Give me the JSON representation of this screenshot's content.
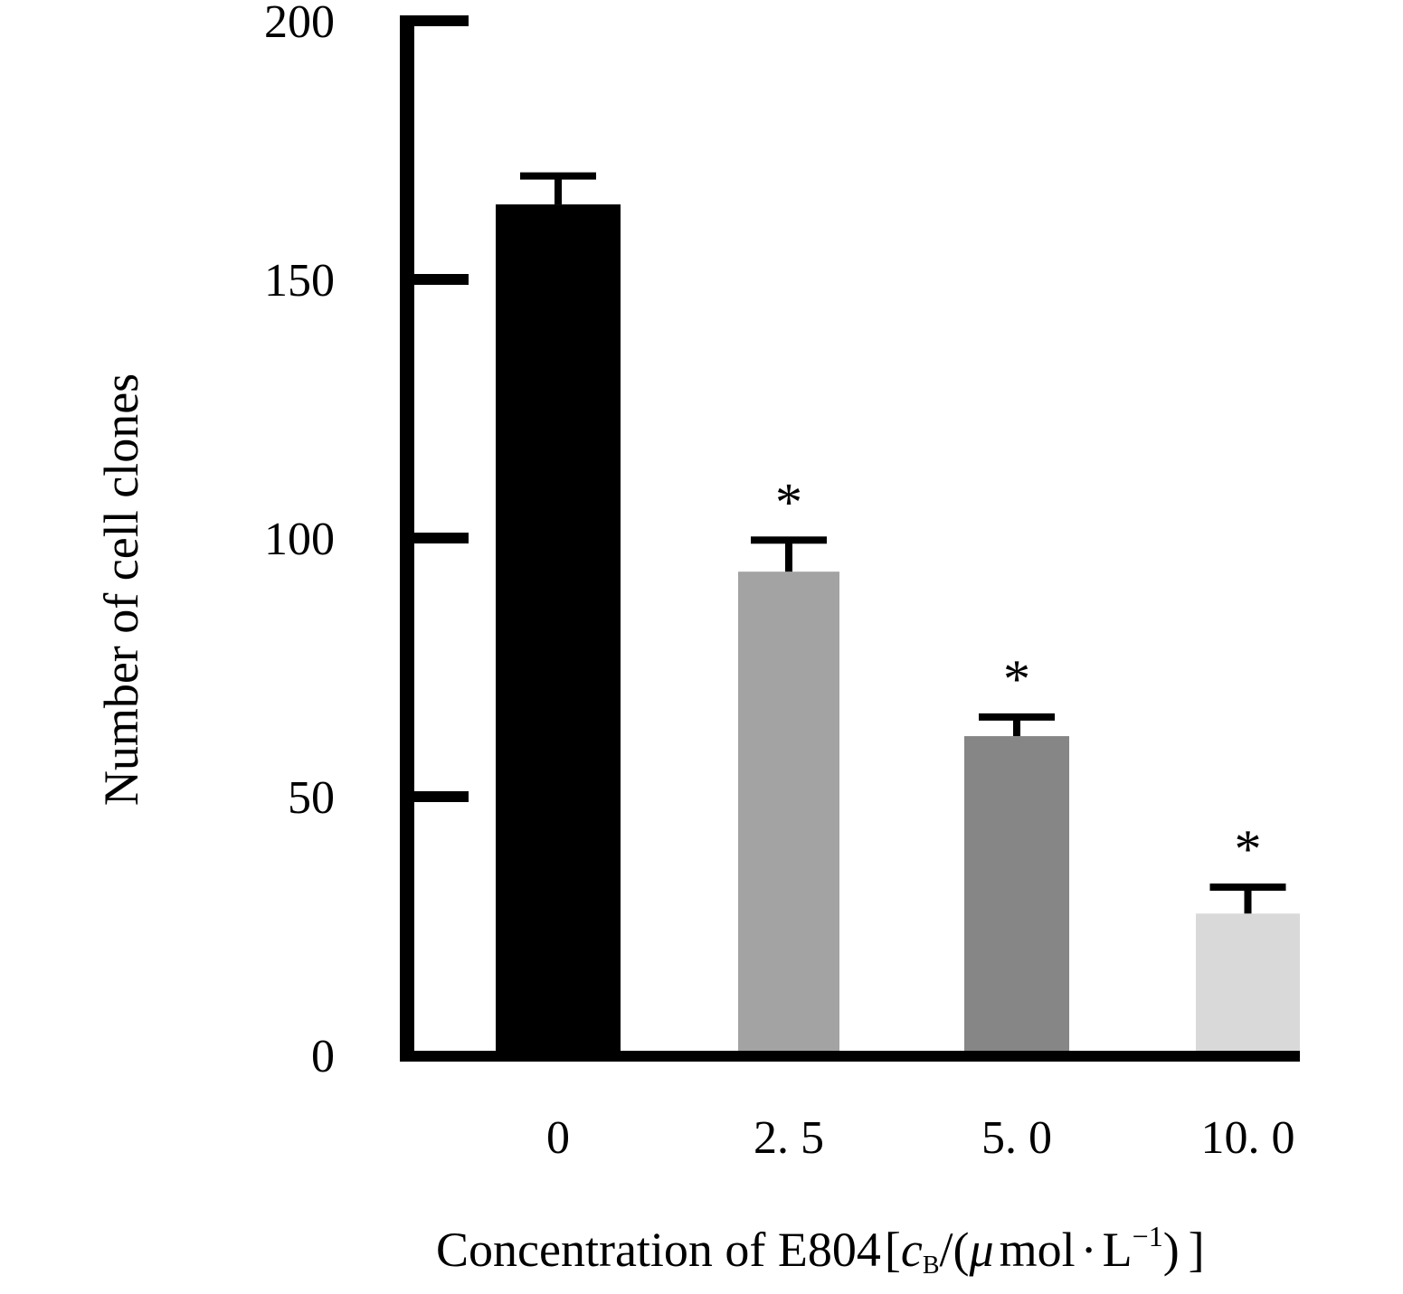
{
  "chart_data": {
    "type": "bar",
    "title": "",
    "xlabel": "Concentration of E804[cB/(μmol·L−1)]",
    "xlabel_parts": {
      "main": "Concentration of E804",
      "open_bracket": "[",
      "var": "c",
      "var_sub": "B",
      "slash_paren": "/(",
      "mu": "μ",
      "unit_mid": "mol",
      "dot": "·",
      "unit_L": "L",
      "exponent": "−1",
      "close": ")",
      "close_bracket": "]"
    },
    "ylabel": "Number of cell clones",
    "ylim": [
      0,
      200
    ],
    "yticks": [
      0,
      50,
      100,
      150,
      200
    ],
    "ytick_labels": [
      "0",
      "50",
      "100",
      "150",
      "200"
    ],
    "categories": [
      "0",
      "2. 5",
      "5. 0",
      "10. 0"
    ],
    "values": [
      164.5,
      93.5,
      61.7,
      27.4
    ],
    "error_upper": [
      5.5,
      6.1,
      3.7,
      5.1
    ],
    "significance": [
      "",
      "*",
      "*",
      "*"
    ],
    "bar_colors": [
      "#000000",
      "#a3a3a3",
      "#868686",
      "#d9d9d9"
    ],
    "grid": false,
    "legend": "none"
  }
}
